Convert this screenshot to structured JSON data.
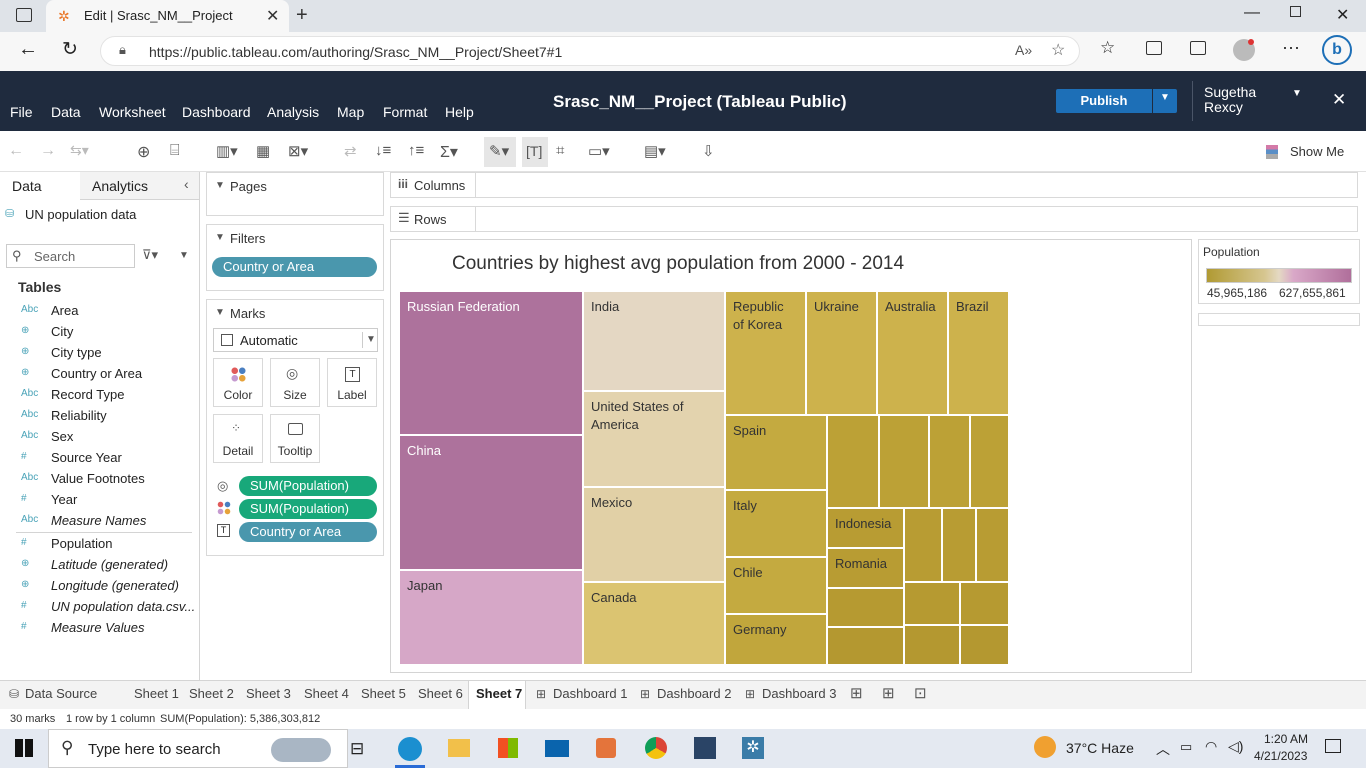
{
  "browser": {
    "tab_title": "Edit | Srasc_NM__Project",
    "url": "https://public.tableau.com/authoring/Srasc_NM__Project/Sheet7#1"
  },
  "tableau": {
    "menu": [
      "File",
      "Data",
      "Worksheet",
      "Dashboard",
      "Analysis",
      "Map",
      "Format",
      "Help"
    ],
    "project_title": "Srasc_NM__Project (Tableau Public)",
    "publish_label": "Publish",
    "user_first": "Sugetha",
    "user_last": "Rexcy",
    "show_me": "Show Me"
  },
  "data_pane": {
    "tab_data": "Data",
    "tab_analytics": "Analytics",
    "datasource": "UN population data",
    "search_placeholder": "Search",
    "tables_heading": "Tables",
    "dimensions": [
      {
        "type": "Abc",
        "name": "Area"
      },
      {
        "type": "globe",
        "name": "City"
      },
      {
        "type": "globe",
        "name": "City type"
      },
      {
        "type": "globe",
        "name": "Country or Area"
      },
      {
        "type": "Abc",
        "name": "Record Type"
      },
      {
        "type": "Abc",
        "name": "Reliability"
      },
      {
        "type": "Abc",
        "name": "Sex"
      },
      {
        "type": "#",
        "name": "Source Year"
      },
      {
        "type": "Abc",
        "name": "Value Footnotes"
      },
      {
        "type": "#",
        "name": "Year"
      },
      {
        "type": "Abc",
        "name": "Measure Names"
      }
    ],
    "measures": [
      {
        "type": "#",
        "name": "Population"
      },
      {
        "type": "globe",
        "name": "Latitude (generated)"
      },
      {
        "type": "globe",
        "name": "Longitude (generated)"
      },
      {
        "type": "#",
        "name": "UN population data.csv..."
      },
      {
        "type": "#",
        "name": "Measure Values"
      }
    ]
  },
  "shelves": {
    "pages": "Pages",
    "filters": "Filters",
    "filter_pill": "Country or Area",
    "marks": "Marks",
    "mark_type": "Automatic",
    "mark_buttons": [
      "Color",
      "Size",
      "Label",
      "Detail",
      "Tooltip"
    ],
    "mark_pills": [
      "SUM(Population)",
      "SUM(Population)",
      "Country or Area"
    ],
    "columns": "Columns",
    "rows": "Rows"
  },
  "chart_data": {
    "type": "treemap",
    "title": "Countries by highest avg population from 2000 - 2014",
    "legend": {
      "title": "Population",
      "min": "45,965,186",
      "max": "627,655,861",
      "colors": [
        "#b09a33",
        "#e4d9c3",
        "#b06f9b"
      ]
    },
    "labels": [
      "Russian Federation",
      "China",
      "Japan",
      "India",
      "United States of America",
      "Mexico",
      "Canada",
      "Republic of Korea",
      "Ukraine",
      "Australia",
      "Brazil",
      "Spain",
      "Italy",
      "Chile",
      "Germany",
      "Indonesia",
      "Romania"
    ],
    "unlabeled_marks": 13
  },
  "sheets": [
    "Data Source",
    "Sheet 1",
    "Sheet 2",
    "Sheet 3",
    "Sheet 4",
    "Sheet 5",
    "Sheet 6",
    "Sheet 7",
    "Dashboard 1",
    "Dashboard 2",
    "Dashboard 3"
  ],
  "active_sheet": "Sheet 7",
  "status": {
    "marks": "30 marks",
    "dims": "1 row by 1 column",
    "sum": "SUM(Population): 5,386,303,812"
  },
  "taskbar": {
    "search": "Type here to search",
    "weather": "37°C  Haze",
    "time": "1:20 AM",
    "date": "4/21/2023"
  }
}
